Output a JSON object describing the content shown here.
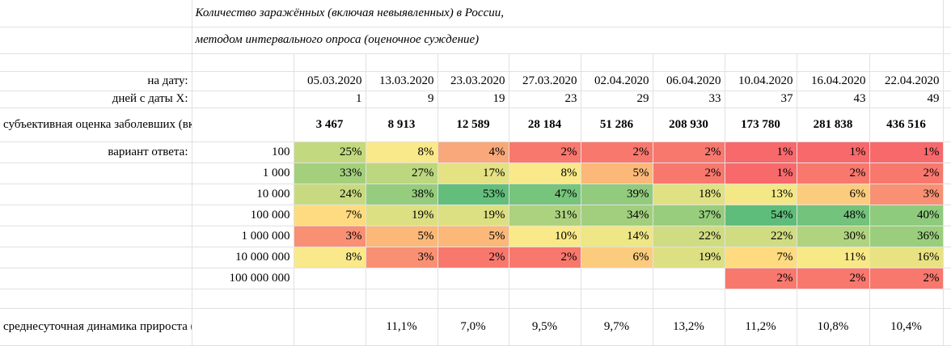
{
  "title_line1": "Количество заражённых (включая невыявленных) в России,",
  "title_line2": "методом интервального опроса (оценочное суждение)",
  "row_labels": {
    "date": "на дату:",
    "days": "дней с даты Х:",
    "estimate": "субъективная оценка заболевших (включая невыявленных):",
    "variant": "вариант ответа:",
    "avg": "среднесуточная динамика прироста (с дня Х):"
  },
  "dates": [
    "05.03.2020",
    "13.03.2020",
    "23.03.2020",
    "27.03.2020",
    "02.04.2020",
    "06.04.2020",
    "10.04.2020",
    "16.04.2020",
    "22.04.2020"
  ],
  "days": [
    "1",
    "9",
    "19",
    "23",
    "29",
    "33",
    "37",
    "43",
    "49"
  ],
  "estimates": [
    "3 467",
    "8 913",
    "12 589",
    "28 184",
    "51 286",
    "208 930",
    "173 780",
    "281 838",
    "436 516"
  ],
  "answers": [
    {
      "label": "100",
      "cells": [
        {
          "text": "25%",
          "color": "#c3d97f"
        },
        {
          "text": "8%",
          "color": "#f9e98a"
        },
        {
          "text": "4%",
          "color": "#f8a87a"
        },
        {
          "text": "2%",
          "color": "#f8786e"
        },
        {
          "text": "2%",
          "color": "#f8786e"
        },
        {
          "text": "2%",
          "color": "#f8786e"
        },
        {
          "text": "1%",
          "color": "#f8696b"
        },
        {
          "text": "1%",
          "color": "#f8696b"
        },
        {
          "text": "1%",
          "color": "#f8696b"
        }
      ]
    },
    {
      "label": "1 000",
      "cells": [
        {
          "text": "33%",
          "color": "#a4d07e"
        },
        {
          "text": "27%",
          "color": "#bcd780"
        },
        {
          "text": "17%",
          "color": "#e4e283"
        },
        {
          "text": "8%",
          "color": "#f9e98a"
        },
        {
          "text": "5%",
          "color": "#fbb878"
        },
        {
          "text": "2%",
          "color": "#f8786e"
        },
        {
          "text": "1%",
          "color": "#f8696b"
        },
        {
          "text": "2%",
          "color": "#f8786e"
        },
        {
          "text": "2%",
          "color": "#f8786e"
        }
      ]
    },
    {
      "label": "10 000",
      "cells": [
        {
          "text": "24%",
          "color": "#c8da80"
        },
        {
          "text": "38%",
          "color": "#95cc7d"
        },
        {
          "text": "53%",
          "color": "#63be7b"
        },
        {
          "text": "47%",
          "color": "#77c47c"
        },
        {
          "text": "39%",
          "color": "#92cb7d"
        },
        {
          "text": "18%",
          "color": "#e0e183"
        },
        {
          "text": "13%",
          "color": "#f4e886"
        },
        {
          "text": "6%",
          "color": "#fccc7e"
        },
        {
          "text": "3%",
          "color": "#f99073"
        }
      ]
    },
    {
      "label": "100 000",
      "cells": [
        {
          "text": "7%",
          "color": "#fedb80"
        },
        {
          "text": "19%",
          "color": "#dde082"
        },
        {
          "text": "19%",
          "color": "#dde082"
        },
        {
          "text": "31%",
          "color": "#acd27f"
        },
        {
          "text": "34%",
          "color": "#a1cf7e"
        },
        {
          "text": "37%",
          "color": "#98cd7d"
        },
        {
          "text": "54%",
          "color": "#5fbd7b"
        },
        {
          "text": "48%",
          "color": "#73c37c"
        },
        {
          "text": "40%",
          "color": "#8ecb7d"
        }
      ]
    },
    {
      "label": "1 000 000",
      "cells": [
        {
          "text": "3%",
          "color": "#f99073"
        },
        {
          "text": "5%",
          "color": "#fbb878"
        },
        {
          "text": "5%",
          "color": "#fbb878"
        },
        {
          "text": "10%",
          "color": "#fae988"
        },
        {
          "text": "14%",
          "color": "#efe685"
        },
        {
          "text": "22%",
          "color": "#d0dc81"
        },
        {
          "text": "22%",
          "color": "#d0dc81"
        },
        {
          "text": "30%",
          "color": "#b0d37f"
        },
        {
          "text": "36%",
          "color": "#9ace7d"
        }
      ]
    },
    {
      "label": "10 000 000",
      "cells": [
        {
          "text": "8%",
          "color": "#f9e98a"
        },
        {
          "text": "3%",
          "color": "#f99073"
        },
        {
          "text": "2%",
          "color": "#f8786e"
        },
        {
          "text": "2%",
          "color": "#f8786e"
        },
        {
          "text": "6%",
          "color": "#fccc7e"
        },
        {
          "text": "19%",
          "color": "#dde082"
        },
        {
          "text": "7%",
          "color": "#fedb80"
        },
        {
          "text": "11%",
          "color": "#f8e987"
        },
        {
          "text": "16%",
          "color": "#e8e283"
        }
      ]
    },
    {
      "label": "100 000 000",
      "cells": [
        {
          "text": "",
          "color": ""
        },
        {
          "text": "",
          "color": ""
        },
        {
          "text": "",
          "color": ""
        },
        {
          "text": "",
          "color": ""
        },
        {
          "text": "",
          "color": ""
        },
        {
          "text": "",
          "color": ""
        },
        {
          "text": "2%",
          "color": "#f8786e"
        },
        {
          "text": "2%",
          "color": "#f8786e"
        },
        {
          "text": "2%",
          "color": "#f8786e"
        }
      ]
    }
  ],
  "avg_growth": [
    "",
    "11,1%",
    "7,0%",
    "9,5%",
    "9,7%",
    "13,2%",
    "11,2%",
    "10,8%",
    "10,4%"
  ]
}
